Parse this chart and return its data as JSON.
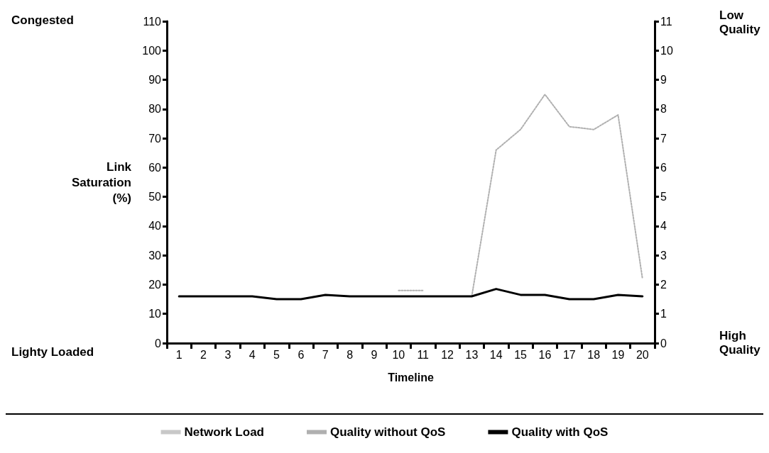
{
  "chart_data": {
    "type": "line",
    "xlabel": "Timeline",
    "ylabel": "Link Saturation (%)",
    "categories": [
      "1",
      "2",
      "3",
      "4",
      "5",
      "6",
      "7",
      "8",
      "9",
      "10",
      "11",
      "12",
      "13",
      "14",
      "15",
      "16",
      "17",
      "18",
      "19",
      "20"
    ],
    "series": [
      {
        "name": "Network Load",
        "color": "#c8c8c8",
        "values": [
          null,
          null,
          null,
          null,
          null,
          null,
          null,
          null,
          null,
          null,
          null,
          null,
          null,
          null,
          null,
          null,
          null,
          null,
          null,
          null
        ]
      },
      {
        "name": "Quality without QoS",
        "color": "#b0b0b0",
        "axis": "y2",
        "line_style": "dotted",
        "values": [
          null,
          null,
          null,
          null,
          null,
          null,
          null,
          null,
          null,
          1.8,
          1.8,
          null,
          1.6,
          6.6,
          7.3,
          8.5,
          7.4,
          7.3,
          7.8,
          2.2
        ]
      },
      {
        "name": "Quality with QoS",
        "color": "#000000",
        "axis": "y2",
        "line_style": "solid",
        "values": [
          1.6,
          1.6,
          1.6,
          1.6,
          1.5,
          1.5,
          1.65,
          1.6,
          1.6,
          1.6,
          1.6,
          1.6,
          1.6,
          1.85,
          1.65,
          1.65,
          1.5,
          1.5,
          1.65,
          1.6
        ]
      }
    ],
    "ylim": [
      0,
      110
    ],
    "yticks": [
      0,
      10,
      20,
      30,
      40,
      50,
      60,
      70,
      80,
      90,
      100,
      110
    ],
    "y2lim": [
      0,
      11
    ],
    "y2ticks": [
      0,
      1,
      2,
      3,
      4,
      5,
      6,
      7,
      8,
      9,
      10,
      11
    ],
    "annotations": [
      "Congested",
      "Lighty Loaded",
      "Low Quality",
      "High Quality"
    ],
    "legend": "bottom",
    "grid": false,
    "marker": "none"
  }
}
